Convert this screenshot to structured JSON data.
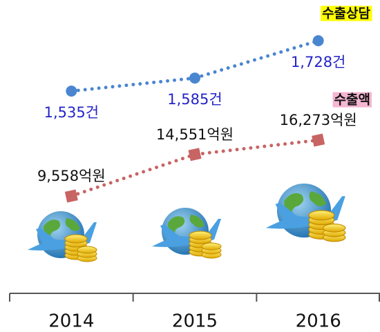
{
  "chart_data": {
    "type": "line",
    "categories": [
      "2014",
      "2015",
      "2016"
    ],
    "series": [
      {
        "name": "수출상담",
        "color": "#4a86d0",
        "label_color": "#2323c8",
        "legend_color": "#ffff00",
        "marker": "circle",
        "values": [
          1535,
          1585,
          1728
        ],
        "value_labels": [
          "1,535건",
          "1,585건",
          "1,728건"
        ]
      },
      {
        "name": "수출액",
        "color": "#c86464",
        "label_color": "#111111",
        "legend_color": "#f4b6d2",
        "marker": "square",
        "values": [
          9558,
          14551,
          16273
        ],
        "value_labels": [
          "9,558억원",
          "14,551억원",
          "16,273억원"
        ]
      }
    ]
  }
}
